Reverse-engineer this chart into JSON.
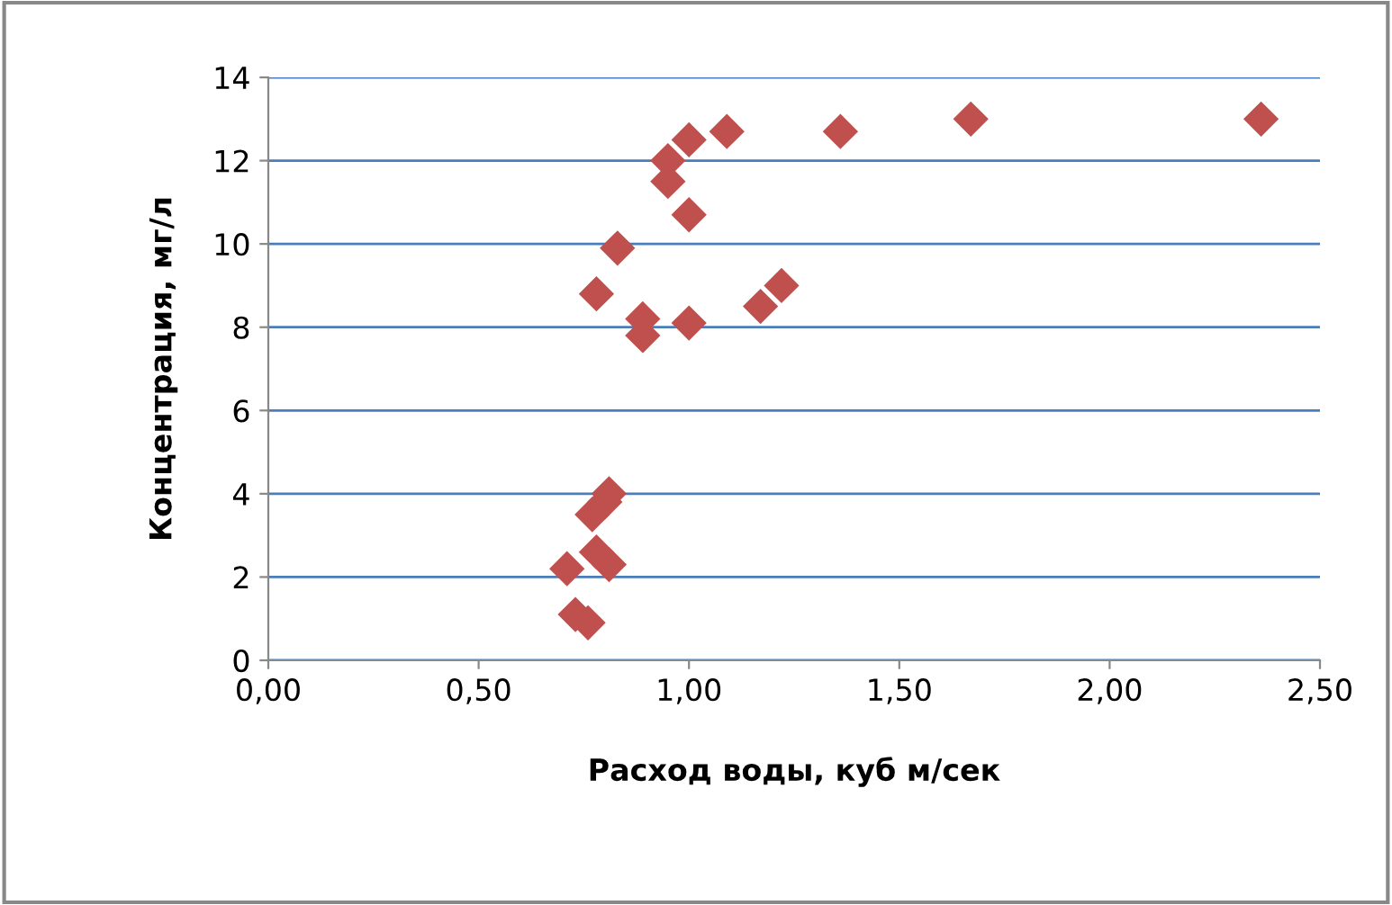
{
  "chart_data": {
    "type": "scatter",
    "xlabel": "Расход воды, куб м/сек",
    "ylabel": "Концентрация, мг/л",
    "x": [
      2.36,
      1.67,
      1.36,
      1.09,
      1.0,
      0.95,
      0.95,
      1.0,
      0.83,
      0.78,
      0.89,
      0.89,
      1.0,
      1.17,
      1.22,
      0.81,
      0.8,
      0.77,
      0.78,
      0.81,
      0.71,
      0.73,
      0.76
    ],
    "series": [
      {
        "color": "#c0504d",
        "values": [
          13.0,
          13.0,
          12.7,
          12.7,
          12.5,
          12.0,
          11.5,
          10.7,
          9.9,
          8.8,
          8.2,
          7.8,
          8.1,
          8.5,
          9.0,
          4.0,
          3.8,
          3.5,
          2.6,
          2.3,
          2.2,
          1.1,
          0.9
        ]
      }
    ],
    "xlim": [
      0,
      2.5
    ],
    "xticks": [
      {
        "value": 0,
        "label": "0,00"
      },
      {
        "value": 0.5,
        "label": "0,50"
      },
      {
        "value": 1.0,
        "label": "1,00"
      },
      {
        "value": 1.5,
        "label": "1,50"
      },
      {
        "value": 2.0,
        "label": "2,00"
      },
      {
        "value": 2.5,
        "label": "2,50"
      }
    ],
    "ylim": [
      0,
      14
    ],
    "yticks": [
      0,
      2,
      4,
      6,
      8,
      10,
      12,
      14
    ],
    "grid": "y",
    "marker": "diamond",
    "legend": false
  }
}
